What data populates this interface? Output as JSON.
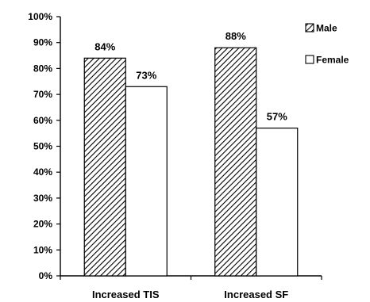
{
  "chart_data": {
    "type": "bar",
    "title": "",
    "xlabel": "",
    "ylabel": "",
    "categories": [
      "Increased TIS",
      "Increased SF"
    ],
    "ylim": [
      0,
      100
    ],
    "yticks": [
      "0%",
      "10%",
      "20%",
      "30%",
      "40%",
      "50%",
      "60%",
      "70%",
      "80%",
      "90%",
      "100%"
    ],
    "grid": false,
    "legend_position": "top-right",
    "series": [
      {
        "name": "Male",
        "values": [
          84,
          88
        ],
        "labels": [
          "84%",
          "88%"
        ],
        "fill": "hatched",
        "color": "#000000"
      },
      {
        "name": "Female",
        "values": [
          73,
          57
        ],
        "labels": [
          "73%",
          "57%"
        ],
        "fill": "solid",
        "color": "#ffffff"
      }
    ]
  }
}
